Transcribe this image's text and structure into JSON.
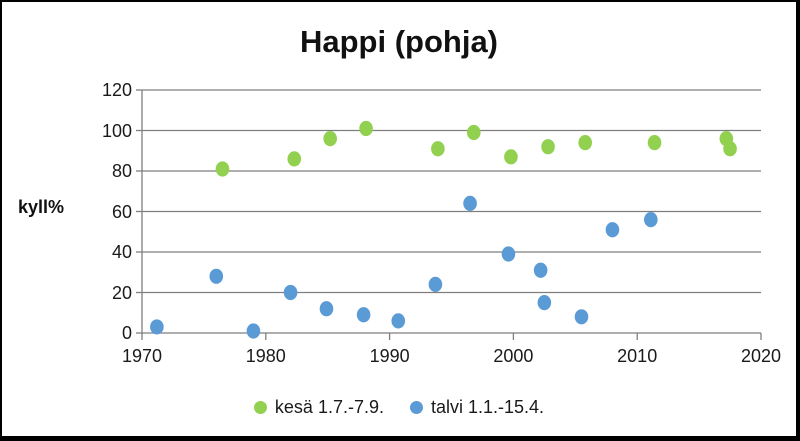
{
  "chart_data": {
    "type": "scatter",
    "title": "Happi (pohja)",
    "ylabel": "kyll%",
    "xlabel": "",
    "xlim": [
      1970,
      2020
    ],
    "ylim": [
      0,
      120
    ],
    "x_ticks": [
      1970,
      1980,
      1990,
      2000,
      2010,
      2020
    ],
    "y_ticks": [
      0,
      20,
      40,
      60,
      80,
      100,
      120
    ],
    "grid": "horizontal",
    "grid_color": "#7f7f7f",
    "axis_color": "#7f7f7f",
    "text_color": "#1a1a1a",
    "legend_position": "bottom",
    "series": [
      {
        "name": "kesä 1.7.-7.9.",
        "color": "#92d050",
        "points": [
          [
            1976.5,
            81
          ],
          [
            1982.3,
            86
          ],
          [
            1985.2,
            96
          ],
          [
            1988.1,
            101
          ],
          [
            1993.9,
            91
          ],
          [
            1996.8,
            99
          ],
          [
            1999.8,
            87
          ],
          [
            2002.8,
            92
          ],
          [
            2005.8,
            94
          ],
          [
            2011.4,
            94
          ],
          [
            2017.2,
            96
          ],
          [
            2017.5,
            91
          ]
        ]
      },
      {
        "name": "talvi 1.1.-15.4.",
        "color": "#5b9bd5",
        "points": [
          [
            1971.2,
            3
          ],
          [
            1976.0,
            28
          ],
          [
            1979.0,
            1
          ],
          [
            1982.0,
            20
          ],
          [
            1984.9,
            12
          ],
          [
            1987.9,
            9
          ],
          [
            1990.7,
            6
          ],
          [
            1993.7,
            24
          ],
          [
            1996.5,
            64
          ],
          [
            1999.6,
            39
          ],
          [
            2002.2,
            31
          ],
          [
            2002.5,
            15
          ],
          [
            2005.5,
            8
          ],
          [
            2008.0,
            51
          ],
          [
            2011.1,
            56
          ]
        ]
      }
    ]
  }
}
